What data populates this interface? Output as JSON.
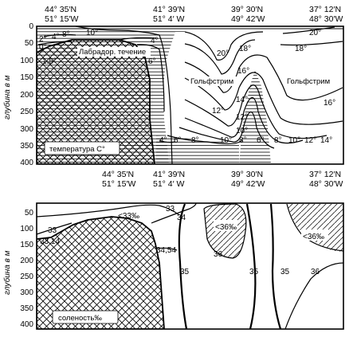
{
  "stations": [
    {
      "lat": "44° 35′N",
      "lon": "51° 15′W"
    },
    {
      "lat": "41° 39′N",
      "lon": "51° 4′ W"
    },
    {
      "lat": "39° 30′N",
      "lon": "49° 42′W"
    },
    {
      "lat": "37° 12′N",
      "lon": "48° 30′W"
    }
  ],
  "ylabel": "глубина в м",
  "top_panel": {
    "yticks": [
      "0",
      "50",
      "100",
      "150",
      "200",
      "250",
      "300",
      "350",
      "400"
    ],
    "caption": "температура С°",
    "current_labels": [
      "Лабрадор. течение",
      "Гольфстрим",
      "Гольфстрим"
    ],
    "isotherms": [
      "10°",
      "8°",
      "4°",
      "2°",
      "0°",
      "4°",
      "6°",
      "1.5°",
      "20°",
      "20°",
      "18°",
      "18°",
      "16°",
      "16°",
      "14°",
      "12°",
      "12°",
      "10°",
      "4°",
      "6°",
      "8°",
      "10°",
      "8°",
      "6°",
      "8°",
      "10°",
      "12°",
      "14°"
    ]
  },
  "bottom_panel": {
    "yticks": [
      "50",
      "100",
      "150",
      "200",
      "250",
      "300",
      "350",
      "400"
    ],
    "caption": "соленость‰",
    "isohalines": [
      "<33‰",
      "33",
      "34",
      "33",
      "33.14",
      "34,54",
      "<36‰",
      "36",
      "35",
      "35",
      "35",
      "36",
      "<36‰"
    ]
  }
}
